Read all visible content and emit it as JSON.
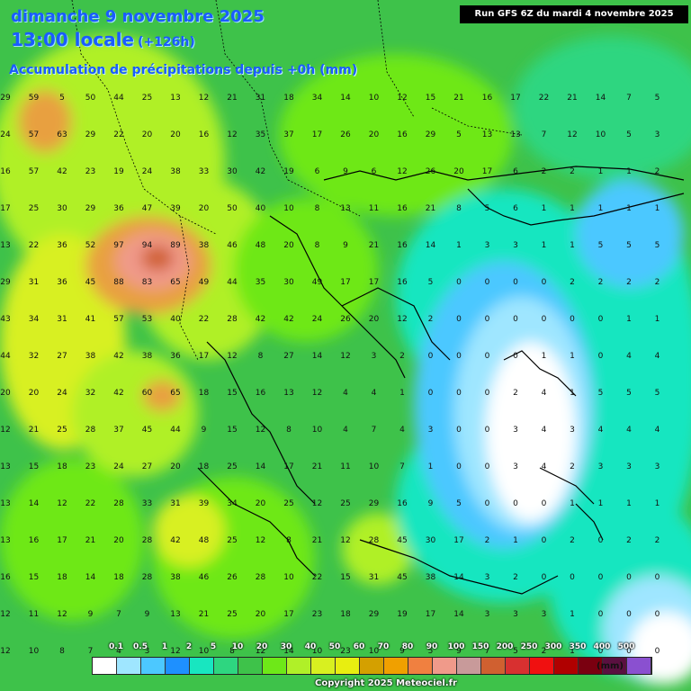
{
  "header": {
    "date_line": "dimanche 9 novembre 2025",
    "time_line": "13:00 locale",
    "lead_hours": "(+126h)",
    "field_title": "Accumulation de précipitations depuis +0h (mm)",
    "run_info": "Run GFS 6Z du mardi 4 novembre 2025"
  },
  "legend": {
    "labels": [
      "0.1",
      "0.5",
      "1",
      "2",
      "5",
      "10",
      "20",
      "30",
      "40",
      "50",
      "60",
      "70",
      "80",
      "90",
      "100",
      "150",
      "200",
      "250",
      "300",
      "350",
      "400",
      "500"
    ],
    "colors": [
      "#ffffff",
      "#9fe6ff",
      "#4cc8ff",
      "#1e90ff",
      "#18e6c0",
      "#2ed680",
      "#3ec24a",
      "#6ee818",
      "#b0f028",
      "#d8f020",
      "#e8ee10",
      "#d4a000",
      "#f0a000",
      "#f08040",
      "#f09a8a",
      "#c89a9a",
      "#d06030",
      "#d83030",
      "#f01010",
      "#b00000",
      "#7a0010",
      "#5a1040",
      "#8a50d0"
    ],
    "unit": "(mm)"
  },
  "footer": {
    "copyright": "Copyright 2025 Meteociel.fr"
  },
  "grid_values": [
    [
      29,
      59,
      5,
      50,
      44,
      25,
      13,
      12,
      21,
      31,
      18,
      34,
      14,
      10,
      12,
      15,
      21,
      16,
      17,
      22,
      21,
      14,
      7,
      5
    ],
    [
      24,
      57,
      63,
      29,
      22,
      20,
      20,
      16,
      12,
      35,
      37,
      17,
      26,
      20,
      16,
      29,
      5,
      13,
      13,
      7,
      12,
      10,
      5,
      3
    ],
    [
      16,
      57,
      42,
      23,
      19,
      24,
      38,
      33,
      30,
      42,
      19,
      6,
      9,
      6,
      12,
      26,
      20,
      17,
      6,
      2,
      2,
      1,
      1,
      2
    ],
    [
      17,
      25,
      30,
      29,
      36,
      47,
      39,
      20,
      50,
      40,
      10,
      8,
      13,
      11,
      16,
      21,
      8,
      5,
      6,
      1,
      1,
      1,
      1,
      1
    ],
    [
      13,
      22,
      36,
      52,
      97,
      94,
      89,
      38,
      46,
      48,
      20,
      8,
      9,
      21,
      16,
      14,
      1,
      3,
      3,
      1,
      1,
      5,
      5,
      5
    ],
    [
      29,
      31,
      36,
      45,
      88,
      83,
      65,
      49,
      44,
      35,
      30,
      49,
      17,
      17,
      16,
      5,
      0,
      0,
      0,
      0,
      2,
      2,
      2,
      2
    ],
    [
      43,
      34,
      31,
      41,
      57,
      53,
      40,
      22,
      28,
      42,
      42,
      24,
      26,
      20,
      12,
      2,
      0,
      0,
      0,
      0,
      0,
      0,
      1,
      1
    ],
    [
      44,
      32,
      27,
      38,
      42,
      38,
      36,
      17,
      12,
      8,
      27,
      14,
      12,
      3,
      2,
      0,
      0,
      0,
      0,
      1,
      1,
      0,
      4,
      4
    ],
    [
      20,
      20,
      24,
      32,
      42,
      60,
      65,
      18,
      15,
      16,
      13,
      12,
      4,
      4,
      1,
      0,
      0,
      0,
      2,
      4,
      1,
      5,
      5,
      5
    ],
    [
      12,
      21,
      25,
      28,
      37,
      45,
      44,
      9,
      15,
      12,
      8,
      10,
      4,
      7,
      4,
      3,
      0,
      0,
      3,
      4,
      3,
      4,
      4,
      4
    ],
    [
      13,
      15,
      18,
      23,
      24,
      27,
      20,
      18,
      25,
      14,
      17,
      21,
      11,
      10,
      7,
      1,
      0,
      0,
      3,
      4,
      2,
      3,
      3,
      3
    ],
    [
      13,
      14,
      12,
      22,
      28,
      33,
      31,
      39,
      34,
      20,
      25,
      12,
      25,
      29,
      16,
      9,
      5,
      0,
      0,
      0,
      1,
      1,
      1,
      1
    ],
    [
      13,
      16,
      17,
      21,
      20,
      28,
      42,
      48,
      25,
      12,
      8,
      21,
      12,
      28,
      45,
      30,
      17,
      2,
      1,
      0,
      2,
      0,
      2,
      2
    ],
    [
      16,
      15,
      18,
      14,
      18,
      28,
      38,
      46,
      26,
      28,
      10,
      22,
      15,
      31,
      45,
      38,
      14,
      3,
      2,
      0,
      0,
      0,
      0,
      0
    ],
    [
      12,
      11,
      12,
      9,
      7,
      9,
      13,
      21,
      25,
      20,
      17,
      23,
      18,
      29,
      19,
      17,
      14,
      3,
      3,
      3,
      1,
      0,
      0,
      0
    ],
    [
      12,
      10,
      8,
      7,
      4,
      3,
      12,
      10,
      8,
      12,
      14,
      10,
      23,
      10,
      9,
      5,
      9,
      7,
      5,
      2,
      1,
      0,
      0,
      0
    ]
  ]
}
